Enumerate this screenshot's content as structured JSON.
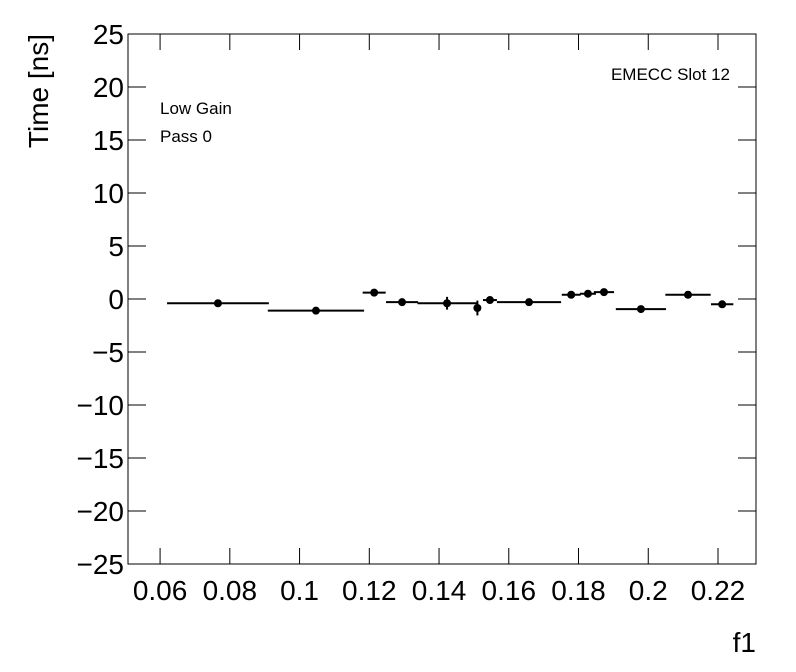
{
  "chart_data": {
    "type": "scatter",
    "ylabel": "Time [ns]",
    "xlabel": "f1",
    "annotations": [
      "EMECC Slot 12",
      "Low Gain",
      "Pass 0"
    ],
    "color": "#000000",
    "x": [
      0.0766,
      0.1047,
      0.1214,
      0.1294,
      0.1423,
      0.151,
      0.1546,
      0.1658,
      0.1779,
      0.1827,
      0.1873,
      0.1979,
      0.2114,
      0.2212
    ],
    "xerr": [
      0.0146,
      0.0138,
      0.0033,
      0.0046,
      0.0085,
      0.001,
      0.002,
      0.0092,
      0.0027,
      0.0023,
      0.0029,
      0.0072,
      0.0065,
      0.0032
    ],
    "values": [
      -0.4,
      -1.1,
      0.6,
      -0.3,
      -0.4,
      -0.85,
      -0.1,
      -0.3,
      0.4,
      0.5,
      0.65,
      -0.95,
      0.4,
      -0.5
    ],
    "yerr": [
      0.15,
      0.15,
      0.2,
      0.3,
      0.6,
      0.7,
      0.25,
      0.15,
      0.2,
      0.25,
      0.3,
      0.2,
      0.2,
      0.2
    ],
    "xlim": [
      0.0508,
      0.2309
    ],
    "ylim": [
      -25,
      25
    ],
    "xticks": [
      0.06,
      0.08,
      0.1,
      0.12,
      0.14,
      0.16,
      0.18,
      0.2,
      0.22
    ],
    "yticks": [
      {
        "value": -25,
        "label": "−25"
      },
      {
        "value": -20,
        "label": "−20"
      },
      {
        "value": -15,
        "label": "−15"
      },
      {
        "value": -10,
        "label": "−10"
      },
      {
        "value": -5,
        "label": "−5"
      },
      0,
      5,
      10,
      15,
      20,
      25
    ]
  }
}
